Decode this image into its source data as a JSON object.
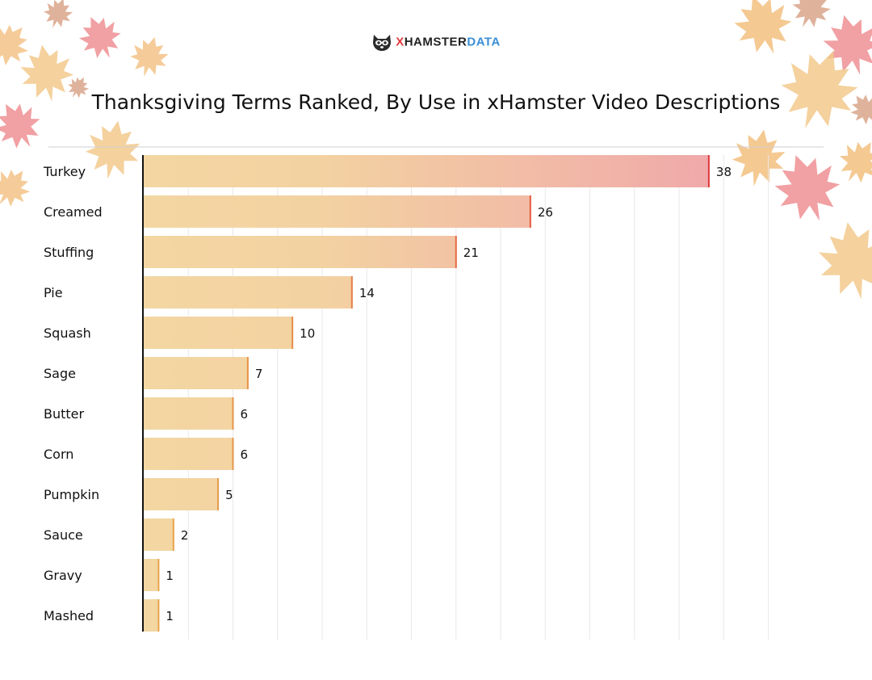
{
  "brand": {
    "logo_icon": "raccoon-mascot-icon",
    "name_part1": "HAMSTER",
    "name_part1_prefix": "X",
    "name_part2": "DATA",
    "colors": {
      "x": "#e0393c",
      "dark": "#222222",
      "data": "#3a8fd6"
    }
  },
  "chart_data": {
    "type": "bar",
    "orientation": "horizontal",
    "title": "Thanksgiving Terms Ranked, By Use in xHamster Video Descriptions",
    "categories": [
      "Turkey",
      "Creamed",
      "Stuffing",
      "Pie",
      "Squash",
      "Sage",
      "Butter",
      "Corn",
      "Pumpkin",
      "Sauce",
      "Gravy",
      "Mashed"
    ],
    "values": [
      38,
      26,
      21,
      14,
      10,
      7,
      6,
      6,
      5,
      2,
      1,
      1
    ],
    "xlim": [
      0,
      43
    ],
    "grid": true,
    "colors": {
      "low": "#f3d6a2",
      "high": "#f0a8aa",
      "edge_low": "#e8a84c",
      "edge_high": "#e0393c"
    }
  }
}
